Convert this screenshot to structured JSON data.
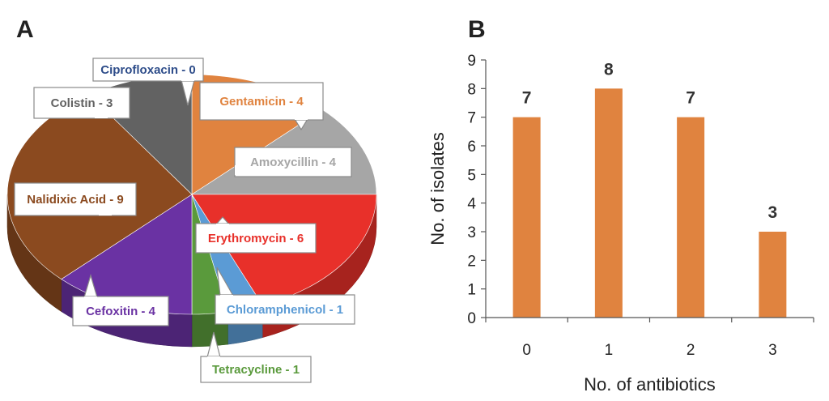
{
  "panels": {
    "a": "A",
    "b": "B"
  },
  "chart_data": [
    {
      "type": "pie",
      "slices": [
        {
          "label": "Ciprofloxacin - 0",
          "value": 0,
          "color": "#2e4d8a"
        },
        {
          "label": "Gentamicin - 4",
          "value": 4,
          "color": "#e0833f"
        },
        {
          "label": "Amoxycillin - 4",
          "value": 4,
          "color": "#a6a6a6"
        },
        {
          "label": "Erythromycin - 6",
          "value": 6,
          "color": "#e8302a"
        },
        {
          "label": "Chloramphenicol - 1",
          "value": 1,
          "color": "#5b9bd5"
        },
        {
          "label": "Tetracycline - 1",
          "value": 1,
          "color": "#5a9a3c"
        },
        {
          "label": "Cefoxitin - 4",
          "value": 4,
          "color": "#6a32a3"
        },
        {
          "label": "Nalidixic Acid - 9",
          "value": 9,
          "color": "#8b4a1f"
        },
        {
          "label": "Colistin - 3",
          "value": 3,
          "color": "#626262"
        }
      ]
    },
    {
      "type": "bar",
      "categories": [
        "0",
        "1",
        "2",
        "3"
      ],
      "values": [
        7,
        8,
        7,
        3
      ],
      "data_labels": [
        "7",
        "8",
        "7",
        "3"
      ],
      "xlabel": "No. of antibiotics",
      "ylabel": "No. of isolates",
      "ylim": [
        0,
        9
      ],
      "yticks": [
        "0",
        "1",
        "2",
        "3",
        "4",
        "5",
        "6",
        "7",
        "8",
        "9"
      ],
      "bar_color": "#e0833f",
      "grid": false
    }
  ]
}
